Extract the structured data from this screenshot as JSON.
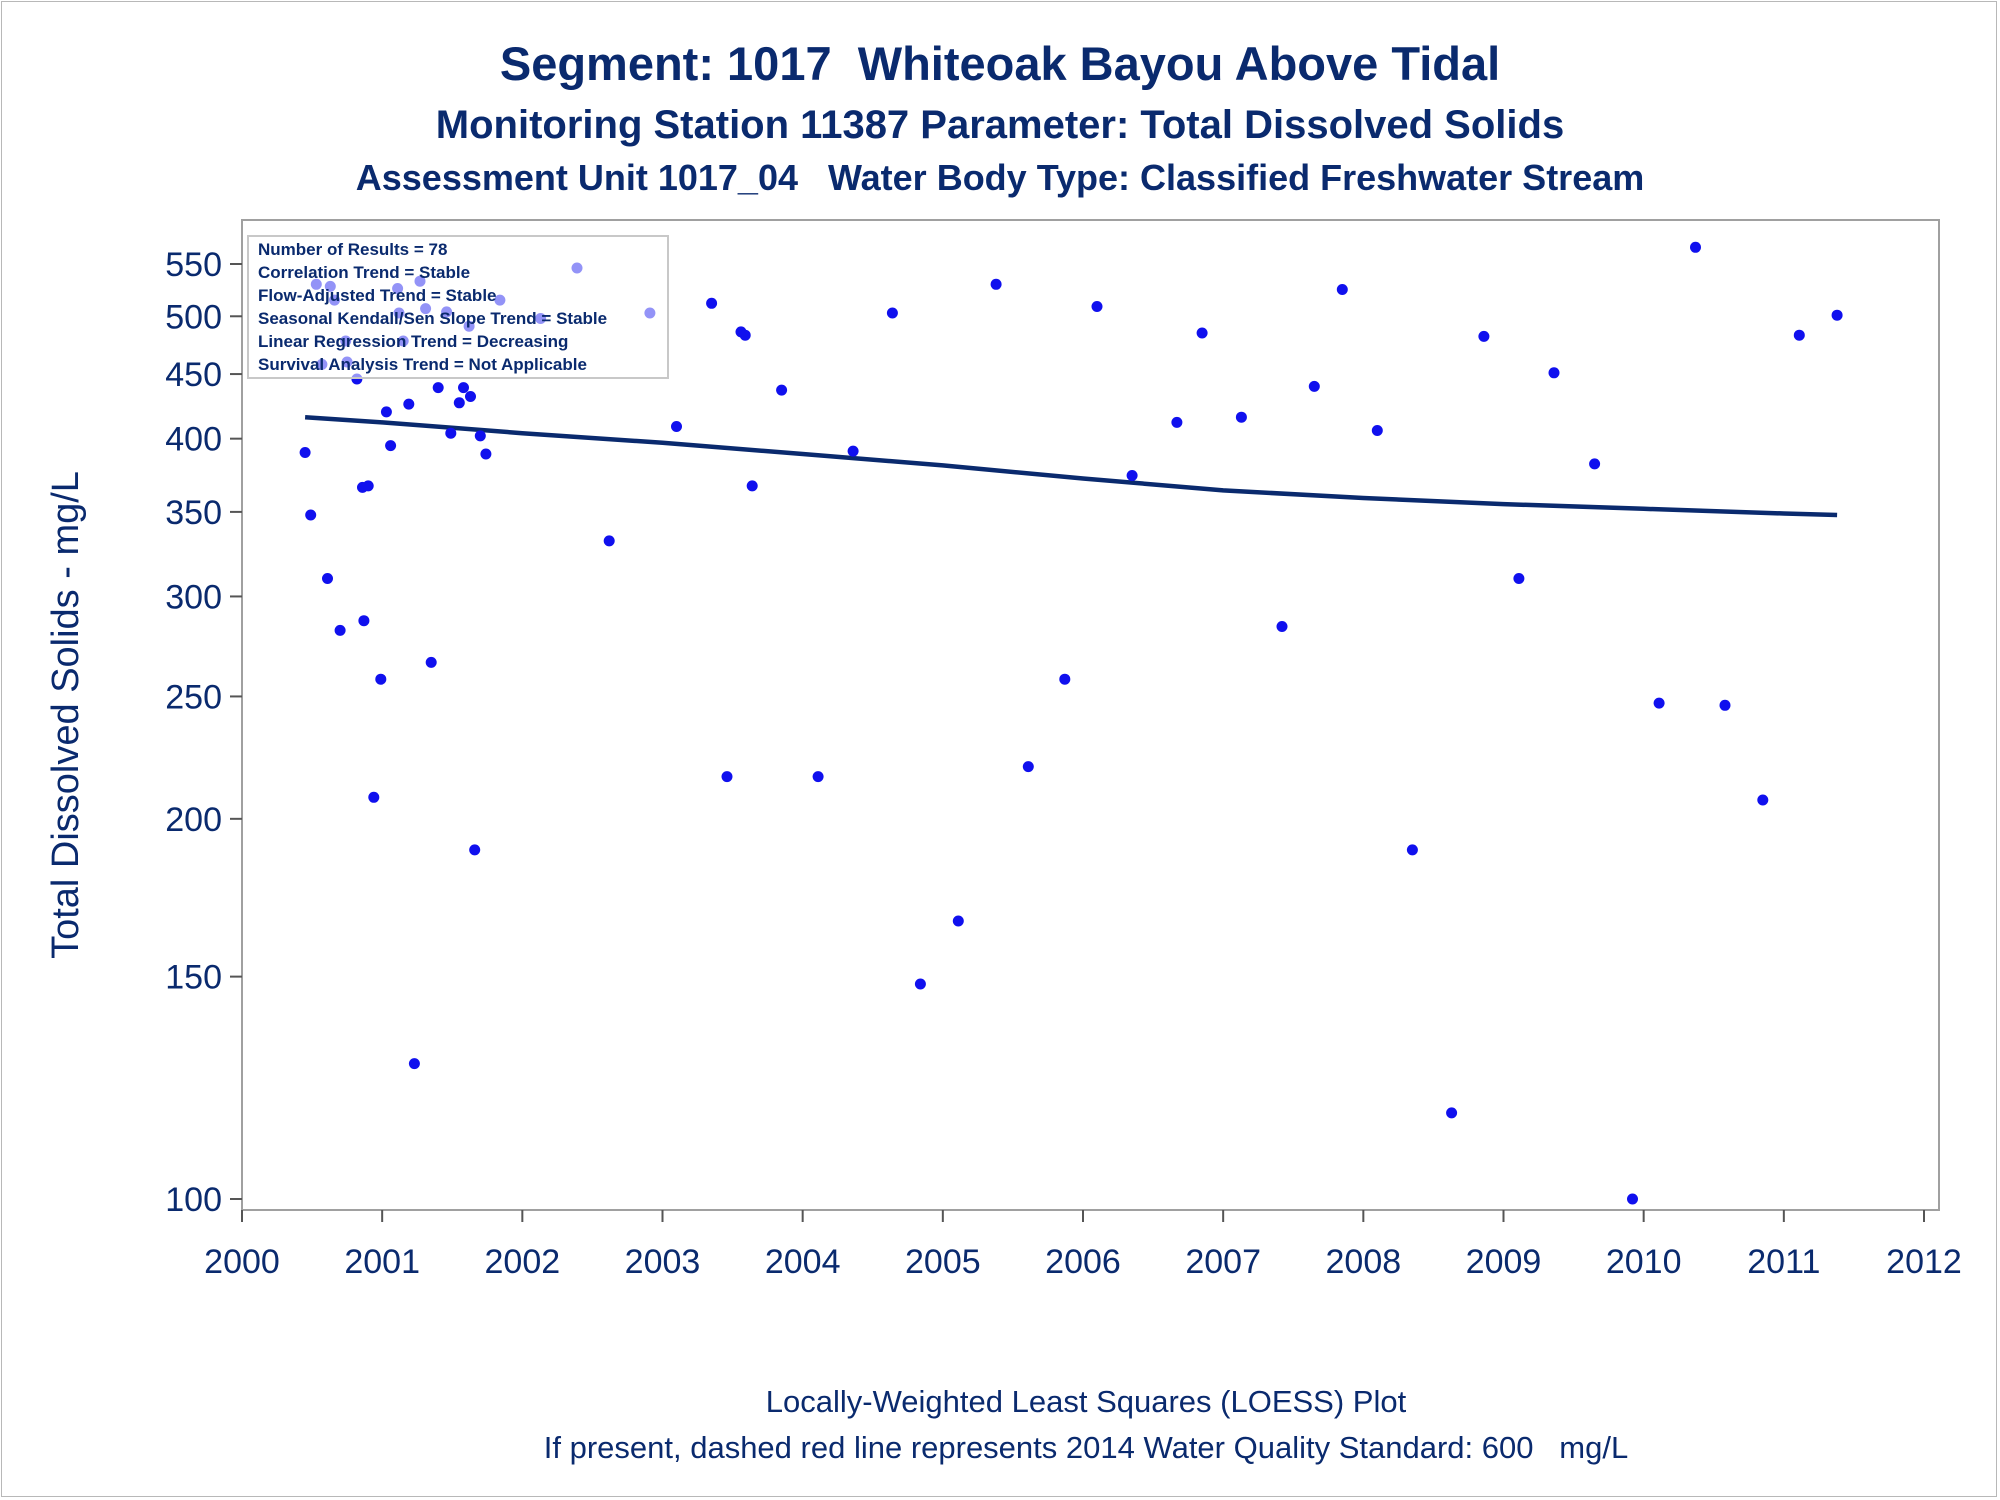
{
  "chart_data": {
    "type": "scatter",
    "title": "Segment: 1017  Whiteoak Bayou Above Tidal",
    "subtitle": "Monitoring Station 11387 Parameter: Total Dissolved Solids",
    "subtitle2": "Assessment Unit 1017_04   Water Body Type: Classified Freshwater Stream",
    "ylabel": "Total Dissolved Solids - mg/L",
    "xlabel": "",
    "yscale": "log",
    "ylim": [
      98,
      590
    ],
    "xlim": [
      2000,
      2012
    ],
    "x_ticks": [
      "2000",
      "2001",
      "2002",
      "2003",
      "2004",
      "2005",
      "2006",
      "2007",
      "2008",
      "2009",
      "2010",
      "2011",
      "2012"
    ],
    "y_ticks": [
      "100",
      "150",
      "200",
      "250",
      "300",
      "350",
      "400",
      "450",
      "500",
      "550"
    ],
    "y_tick_values": [
      100,
      150,
      200,
      250,
      300,
      350,
      400,
      450,
      500,
      550
    ],
    "stats_box": [
      "Number of Results = 78",
      "Correlation Trend = Stable",
      "Flow-Adjusted Trend = Stable",
      "Seasonal Kendall/Sen Slope Trend = Stable",
      "Linear Regression Trend = Decreasing",
      "Survival Analysis Trend = Not Applicable"
    ],
    "footnotes": [
      "Locally-Weighted Least Squares (LOESS) Plot",
      "If present, dashed red line represents 2014 Water Quality Standard: 600   mg/L"
    ],
    "points": [
      {
        "x": 2000.45,
        "y": 390
      },
      {
        "x": 2000.49,
        "y": 348
      },
      {
        "x": 2000.53,
        "y": 530
      },
      {
        "x": 2000.57,
        "y": 458
      },
      {
        "x": 2000.61,
        "y": 310
      },
      {
        "x": 2000.63,
        "y": 528
      },
      {
        "x": 2000.66,
        "y": 515
      },
      {
        "x": 2000.7,
        "y": 282
      },
      {
        "x": 2000.74,
        "y": 478
      },
      {
        "x": 2000.75,
        "y": 460
      },
      {
        "x": 2000.82,
        "y": 446
      },
      {
        "x": 2000.86,
        "y": 366
      },
      {
        "x": 2000.87,
        "y": 287
      },
      {
        "x": 2000.9,
        "y": 367
      },
      {
        "x": 2000.94,
        "y": 208
      },
      {
        "x": 2000.99,
        "y": 258
      },
      {
        "x": 2001.03,
        "y": 420
      },
      {
        "x": 2001.06,
        "y": 395
      },
      {
        "x": 2001.11,
        "y": 526
      },
      {
        "x": 2001.12,
        "y": 503
      },
      {
        "x": 2001.15,
        "y": 478
      },
      {
        "x": 2001.19,
        "y": 426
      },
      {
        "x": 2001.23,
        "y": 128
      },
      {
        "x": 2001.27,
        "y": 533
      },
      {
        "x": 2001.31,
        "y": 507
      },
      {
        "x": 2001.35,
        "y": 266
      },
      {
        "x": 2001.4,
        "y": 439
      },
      {
        "x": 2001.46,
        "y": 504
      },
      {
        "x": 2001.49,
        "y": 404
      },
      {
        "x": 2001.55,
        "y": 427
      },
      {
        "x": 2001.58,
        "y": 439
      },
      {
        "x": 2001.62,
        "y": 491
      },
      {
        "x": 2001.63,
        "y": 432
      },
      {
        "x": 2001.66,
        "y": 189
      },
      {
        "x": 2001.7,
        "y": 402
      },
      {
        "x": 2001.74,
        "y": 389
      },
      {
        "x": 2001.84,
        "y": 515
      },
      {
        "x": 2002.13,
        "y": 498
      },
      {
        "x": 2002.39,
        "y": 546
      },
      {
        "x": 2002.62,
        "y": 332
      },
      {
        "x": 2002.91,
        "y": 503
      },
      {
        "x": 2003.1,
        "y": 409
      },
      {
        "x": 2003.35,
        "y": 512
      },
      {
        "x": 2003.46,
        "y": 216
      },
      {
        "x": 2003.56,
        "y": 486
      },
      {
        "x": 2003.59,
        "y": 483
      },
      {
        "x": 2003.64,
        "y": 367
      },
      {
        "x": 2003.85,
        "y": 437
      },
      {
        "x": 2004.11,
        "y": 216
      },
      {
        "x": 2004.36,
        "y": 391
      },
      {
        "x": 2004.64,
        "y": 503
      },
      {
        "x": 2004.84,
        "y": 148
      },
      {
        "x": 2005.11,
        "y": 166
      },
      {
        "x": 2005.38,
        "y": 530
      },
      {
        "x": 2005.61,
        "y": 220
      },
      {
        "x": 2005.87,
        "y": 258
      },
      {
        "x": 2006.1,
        "y": 509
      },
      {
        "x": 2006.35,
        "y": 374
      },
      {
        "x": 2006.67,
        "y": 412
      },
      {
        "x": 2006.85,
        "y": 485
      },
      {
        "x": 2007.13,
        "y": 416
      },
      {
        "x": 2007.42,
        "y": 284
      },
      {
        "x": 2007.65,
        "y": 440
      },
      {
        "x": 2007.85,
        "y": 525
      },
      {
        "x": 2008.1,
        "y": 406
      },
      {
        "x": 2008.35,
        "y": 189
      },
      {
        "x": 2008.63,
        "y": 117
      },
      {
        "x": 2008.86,
        "y": 482
      },
      {
        "x": 2009.11,
        "y": 310
      },
      {
        "x": 2009.36,
        "y": 451
      },
      {
        "x": 2009.65,
        "y": 382
      },
      {
        "x": 2009.92,
        "y": 100
      },
      {
        "x": 2010.11,
        "y": 247
      },
      {
        "x": 2010.37,
        "y": 567
      },
      {
        "x": 2010.58,
        "y": 246
      },
      {
        "x": 2010.85,
        "y": 207
      },
      {
        "x": 2011.11,
        "y": 483
      },
      {
        "x": 2011.38,
        "y": 501
      }
    ],
    "loess": [
      {
        "x": 2000.45,
        "y": 416
      },
      {
        "x": 2001.0,
        "y": 412
      },
      {
        "x": 2002.0,
        "y": 404
      },
      {
        "x": 2003.0,
        "y": 397
      },
      {
        "x": 2004.0,
        "y": 389
      },
      {
        "x": 2005.0,
        "y": 381
      },
      {
        "x": 2006.0,
        "y": 372
      },
      {
        "x": 2007.0,
        "y": 364
      },
      {
        "x": 2008.0,
        "y": 359
      },
      {
        "x": 2009.0,
        "y": 355
      },
      {
        "x": 2010.0,
        "y": 352
      },
      {
        "x": 2011.0,
        "y": 349
      },
      {
        "x": 2011.38,
        "y": 348
      }
    ],
    "colors": {
      "points": "#1010ee",
      "loess": "#0a2a6e",
      "text": "#0a2a6e",
      "frame": "#a0a0a0"
    }
  }
}
